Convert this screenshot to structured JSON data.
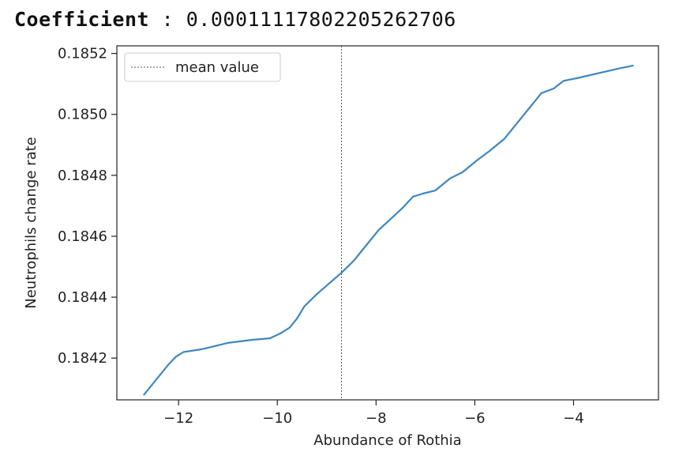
{
  "header": {
    "label": "Coefficient",
    "separator": " : ",
    "value": "0.00011117802205262706"
  },
  "chart_data": {
    "type": "line",
    "title": "",
    "xlabel": "Abundance of Rothia",
    "ylabel": "Neutrophils change rate",
    "xlim": [
      -13.25,
      -2.28
    ],
    "ylim": [
      0.184063,
      0.185225
    ],
    "x_ticks": [
      -12,
      -10,
      -8,
      -6,
      -4
    ],
    "x_tick_labels": [
      "−12",
      "−10",
      "−8",
      "−6",
      "−4"
    ],
    "y_ticks": [
      0.1842,
      0.1844,
      0.1846,
      0.1848,
      0.185,
      0.1852
    ],
    "y_tick_labels": [
      "0.1842",
      "0.1844",
      "0.1846",
      "0.1848",
      "0.1850",
      "0.1852"
    ],
    "grid": false,
    "legend_position": "top-left",
    "series": [
      {
        "color": "#3f86bf",
        "x": [
          -12.7,
          -12.45,
          -12.2,
          -12.05,
          -11.9,
          -11.5,
          -11.0,
          -10.5,
          -10.15,
          -9.95,
          -9.75,
          -9.6,
          -9.45,
          -9.2,
          -8.95,
          -8.7,
          -8.45,
          -8.2,
          -7.95,
          -7.65,
          -7.45,
          -7.25,
          -7.05,
          -6.8,
          -6.5,
          -6.25,
          -5.95,
          -5.7,
          -5.4,
          -5.15,
          -4.9,
          -4.65,
          -4.4,
          -4.2,
          -3.9,
          -3.5,
          -3.1,
          -2.8
        ],
        "y": [
          0.18408,
          0.18413,
          0.18418,
          0.184205,
          0.18422,
          0.18423,
          0.18425,
          0.18426,
          0.184265,
          0.18428,
          0.1843,
          0.18433,
          0.18437,
          0.18441,
          0.184445,
          0.18448,
          0.18452,
          0.18457,
          0.18462,
          0.184665,
          0.184695,
          0.18473,
          0.18474,
          0.18475,
          0.18479,
          0.18481,
          0.18485,
          0.18488,
          0.18492,
          0.18497,
          0.18502,
          0.18507,
          0.185085,
          0.18511,
          0.18512,
          0.185135,
          0.18515,
          0.18516
        ]
      }
    ],
    "mean_line": {
      "x": -8.7,
      "color": "#555555",
      "legend_label": "mean value"
    }
  }
}
